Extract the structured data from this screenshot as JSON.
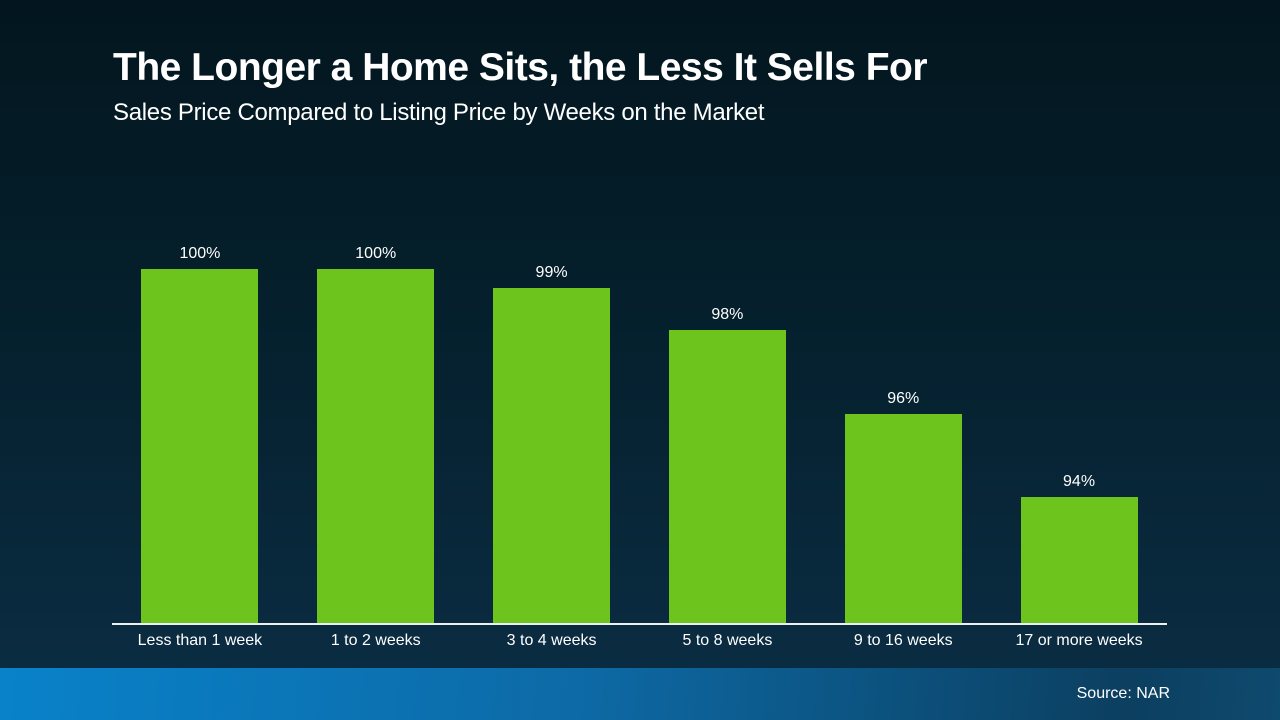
{
  "header": {
    "title": "The Longer a Home Sits, the Less It Sells For",
    "subtitle": "Sales Price Compared to Listing Price by Weeks on the Market"
  },
  "footer": {
    "source": "Source: NAR"
  },
  "chart_data": {
    "type": "bar",
    "title": "The Longer a Home Sits, the Less It Sells For",
    "subtitle": "Sales Price Compared to Listing Price by Weeks on the Market",
    "categories": [
      "Less than 1 week",
      "1 to 2 weeks",
      "3 to 4 weeks",
      "5 to 8 weeks",
      "9 to 16 weeks",
      "17 or more weeks"
    ],
    "values": [
      100,
      100,
      99,
      98,
      96,
      94
    ],
    "value_labels": [
      "100%",
      "100%",
      "99%",
      "98%",
      "96%",
      "94%"
    ],
    "unit": "%",
    "xlabel": "",
    "ylabel": "",
    "ylim": [
      91,
      100
    ],
    "grid": false,
    "legend": false,
    "bar_color": "#6cc41c",
    "source": "Source: NAR"
  },
  "colors": {
    "background_top": "#03161f",
    "background_bottom": "#0a2c42",
    "bar_green": "#6cc41c",
    "band_blue_left": "#0982ca",
    "band_blue_right": "#0c3f60",
    "axis_line": "#efefef",
    "text": "#ffffff"
  }
}
